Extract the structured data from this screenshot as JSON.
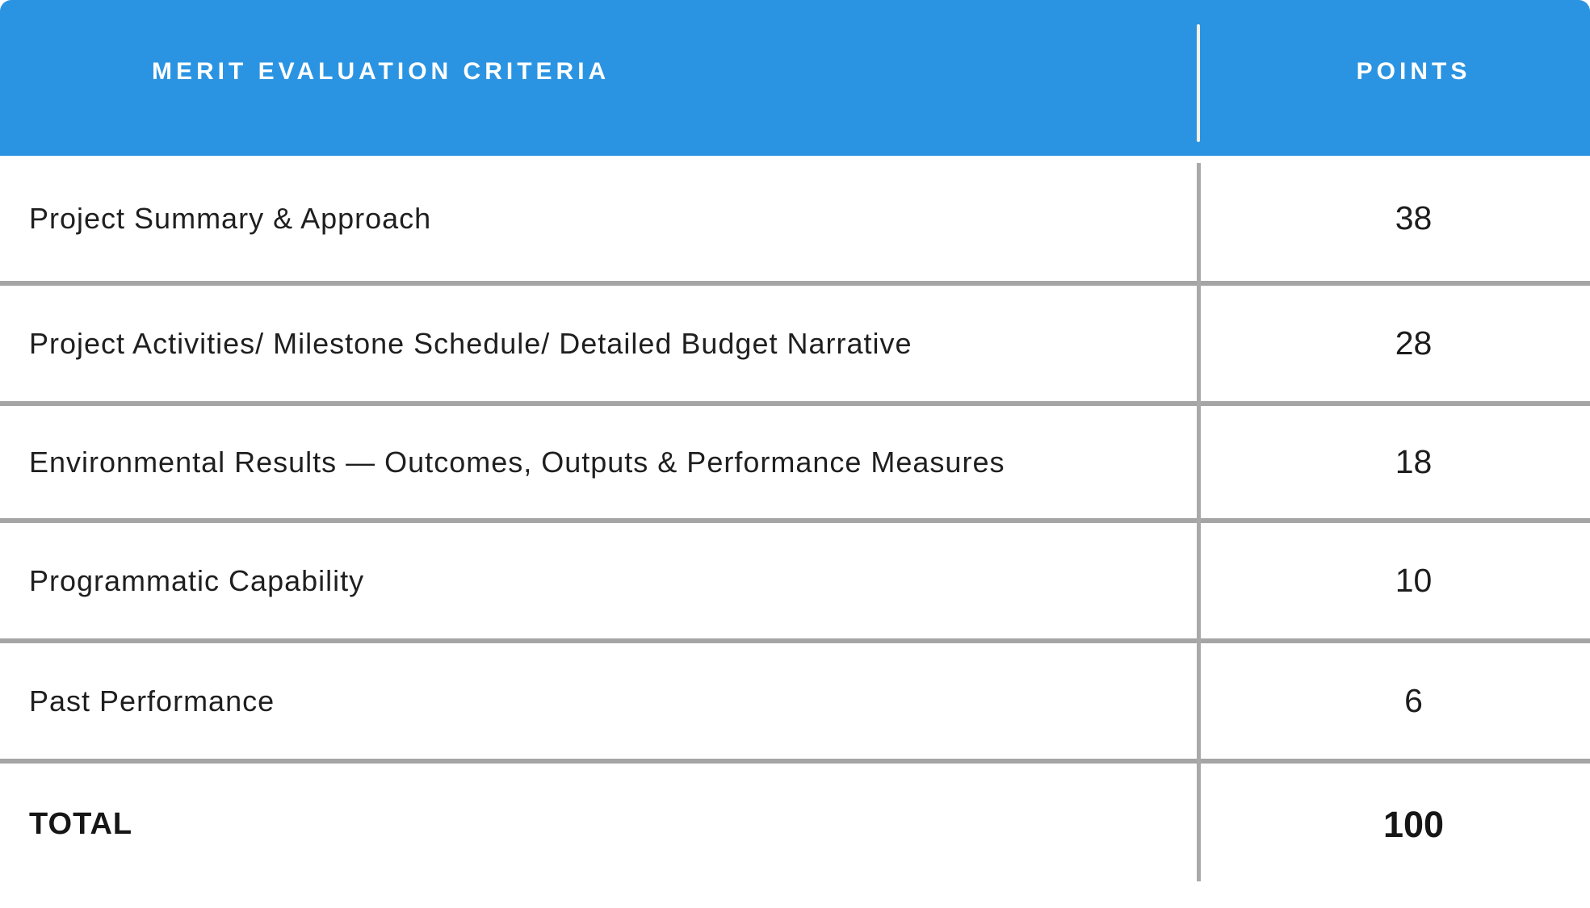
{
  "header": {
    "criteria_label": "MERIT EVALUATION CRITERIA",
    "points_label": "POINTS"
  },
  "rows": [
    {
      "label": "Project Summary & Approach",
      "points": "38"
    },
    {
      "label": "Project Activities/ Milestone Schedule/ Detailed Budget Narrative",
      "points": "28"
    },
    {
      "label": "Environmental Results — Outcomes, Outputs & Performance Measures",
      "points": "18"
    },
    {
      "label": "Programmatic Capability",
      "points": "10"
    },
    {
      "label": "Past Performance",
      "points": "6"
    }
  ],
  "total": {
    "label": "TOTAL",
    "points": "100"
  },
  "colors": {
    "header_bg": "#2B94E2",
    "header_text": "#FFFFFF",
    "header_divider": "#F6F0E6",
    "row_divider": "#A5A5A5",
    "body_text": "#1F1F1F"
  }
}
